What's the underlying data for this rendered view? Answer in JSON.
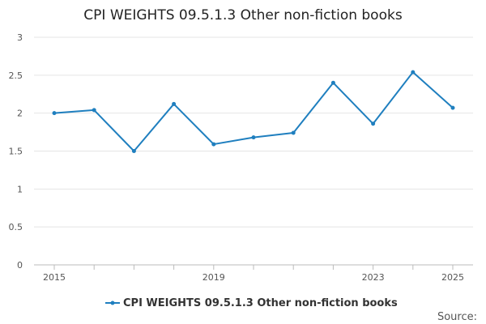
{
  "chart_data": {
    "type": "line",
    "title": "CPI WEIGHTS 09.5.1.3 Other non-fiction books",
    "xlabel": "",
    "ylabel": "",
    "x": [
      2015,
      2016,
      2017,
      2018,
      2019,
      2020,
      2021,
      2022,
      2023,
      2024,
      2025
    ],
    "x_tick_labels": [
      "2015",
      "2019",
      "2023",
      "2025"
    ],
    "x_tick_label_years": [
      2015,
      2019,
      2023,
      2025
    ],
    "series": [
      {
        "name": "CPI WEIGHTS 09.5.1.3 Other non-fiction books",
        "color": "#1f7fbf",
        "values": [
          2.0,
          2.04,
          1.5,
          2.12,
          1.59,
          1.68,
          1.74,
          2.4,
          1.86,
          2.54,
          2.07
        ]
      }
    ],
    "ylim": [
      0,
      3
    ],
    "y_ticks": [
      "0",
      "0.5",
      "1",
      "1.5",
      "2",
      "2.5",
      "3"
    ],
    "y_tick_values": [
      0,
      0.5,
      1,
      1.5,
      2,
      2.5,
      3
    ],
    "grid": true,
    "legend_position": "bottom-center"
  },
  "source_label": "Source:"
}
